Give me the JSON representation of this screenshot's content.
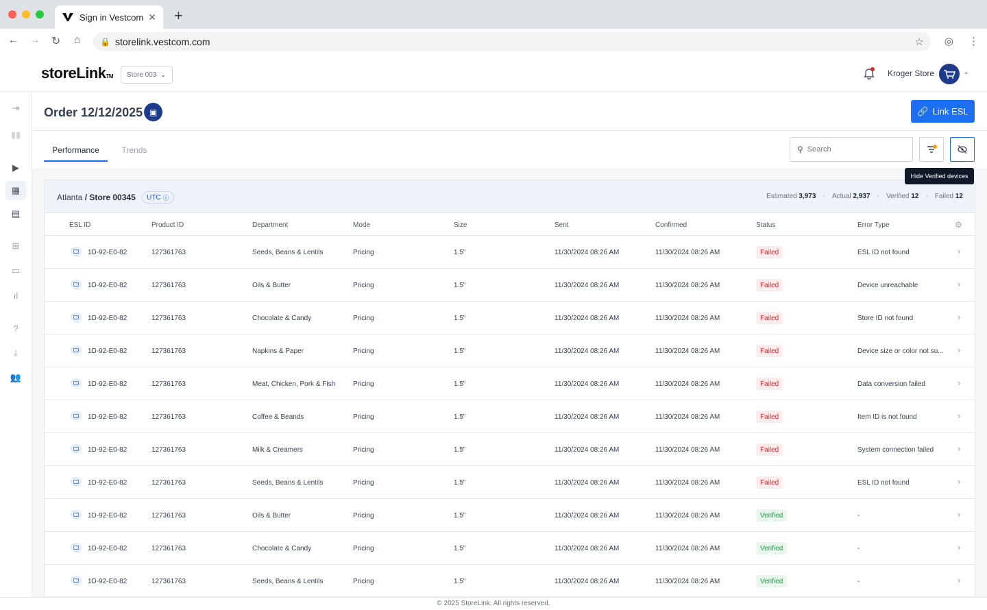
{
  "browser": {
    "tab_title": "Sign in Vestcom",
    "url": "storelink.vestcom.com"
  },
  "header": {
    "logo": "storeLink",
    "logo_mark": "TM",
    "store_select": "Store 003",
    "user_name": "Kroger Store"
  },
  "page": {
    "title": "Order 12/12/2025",
    "link_button": "Link ESL",
    "tabs": [
      "Performance",
      "Trends"
    ],
    "search_placeholder": "Search",
    "tooltip": "Hide Verified devices"
  },
  "panel": {
    "city": "Atlanta",
    "store": "/ Store 00345",
    "timezone": "UTC",
    "stats": {
      "estimated_label": "Estimated",
      "estimated_value": "3,973",
      "actual_label": "Actual",
      "actual_value": "2,937",
      "verified_label": "Verified",
      "verified_value": "12",
      "failed_label": "Failed",
      "failed_value": "12"
    }
  },
  "table": {
    "columns": [
      "ESL ID",
      "Product ID",
      "Department",
      "Mode",
      "Size",
      "Sent",
      "Confirmed",
      "Status",
      "Error Type"
    ],
    "rows": [
      {
        "esl": "1D-92-E0-82",
        "product": "127361763",
        "dept": "Seeds, Beans & Lentils",
        "mode": "Pricing",
        "size": "1.5\"",
        "sent": "11/30/2024 08:26 AM",
        "confirmed": "11/30/2024 08:26 AM",
        "status": "Failed",
        "error": "ESL ID not found"
      },
      {
        "esl": "1D-92-E0-82",
        "product": "127361763",
        "dept": "Oils & Butter",
        "mode": "Pricing",
        "size": "1.5\"",
        "sent": "11/30/2024 08:26 AM",
        "confirmed": "11/30/2024 08:26 AM",
        "status": "Failed",
        "error": "Device unreachable"
      },
      {
        "esl": "1D-92-E0-82",
        "product": "127361763",
        "dept": "Chocolate & Candy",
        "mode": "Pricing",
        "size": "1.5\"",
        "sent": "11/30/2024 08:26 AM",
        "confirmed": "11/30/2024 08:26 AM",
        "status": "Failed",
        "error": "Store ID not found"
      },
      {
        "esl": "1D-92-E0-82",
        "product": "127361763",
        "dept": "Napkins & Paper",
        "mode": "Pricing",
        "size": "1.5\"",
        "sent": "11/30/2024 08:26 AM",
        "confirmed": "11/30/2024 08:26 AM",
        "status": "Failed",
        "error": "Device size or color not su..."
      },
      {
        "esl": "1D-92-E0-82",
        "product": "127361763",
        "dept": "Meat, Chicken, Pork & Fish",
        "mode": "Pricing",
        "size": "1.5\"",
        "sent": "11/30/2024 08:26 AM",
        "confirmed": "11/30/2024 08:26 AM",
        "status": "Failed",
        "error": "Data conversion failed"
      },
      {
        "esl": "1D-92-E0-82",
        "product": "127361763",
        "dept": "Coffee & Beands",
        "mode": "Pricing",
        "size": "1.5\"",
        "sent": "11/30/2024 08:26 AM",
        "confirmed": "11/30/2024 08:26 AM",
        "status": "Failed",
        "error": "Item ID is not found"
      },
      {
        "esl": "1D-92-E0-82",
        "product": "127361763",
        "dept": "Milk & Creamers",
        "mode": "Pricing",
        "size": "1.5\"",
        "sent": "11/30/2024 08:26 AM",
        "confirmed": "11/30/2024 08:26 AM",
        "status": "Failed",
        "error": "System connection failed"
      },
      {
        "esl": "1D-92-E0-82",
        "product": "127361763",
        "dept": "Seeds, Beans & Lentils",
        "mode": "Pricing",
        "size": "1.5\"",
        "sent": "11/30/2024 08:26 AM",
        "confirmed": "11/30/2024 08:26 AM",
        "status": "Failed",
        "error": "ESL ID not found"
      },
      {
        "esl": "1D-92-E0-82",
        "product": "127361763",
        "dept": "Oils & Butter",
        "mode": "Pricing",
        "size": "1.5\"",
        "sent": "11/30/2024 08:26 AM",
        "confirmed": "11/30/2024 08:26 AM",
        "status": "Verified",
        "error": "-"
      },
      {
        "esl": "1D-92-E0-82",
        "product": "127361763",
        "dept": "Chocolate & Candy",
        "mode": "Pricing",
        "size": "1.5\"",
        "sent": "11/30/2024 08:26 AM",
        "confirmed": "11/30/2024 08:26 AM",
        "status": "Verified",
        "error": "-"
      },
      {
        "esl": "1D-92-E0-82",
        "product": "127361763",
        "dept": "Seeds, Beans & Lentils",
        "mode": "Pricing",
        "size": "1.5\"",
        "sent": "11/30/2024 08:26 AM",
        "confirmed": "11/30/2024 08:26 AM",
        "status": "Verified",
        "error": "-"
      }
    ]
  },
  "footer": "© 2025 StoreLink. All rights reserved.",
  "colors": {
    "accent": "#1d6ff2",
    "navy": "#1e3a8a",
    "failed": "#dc2626",
    "verified": "#16a34a"
  }
}
